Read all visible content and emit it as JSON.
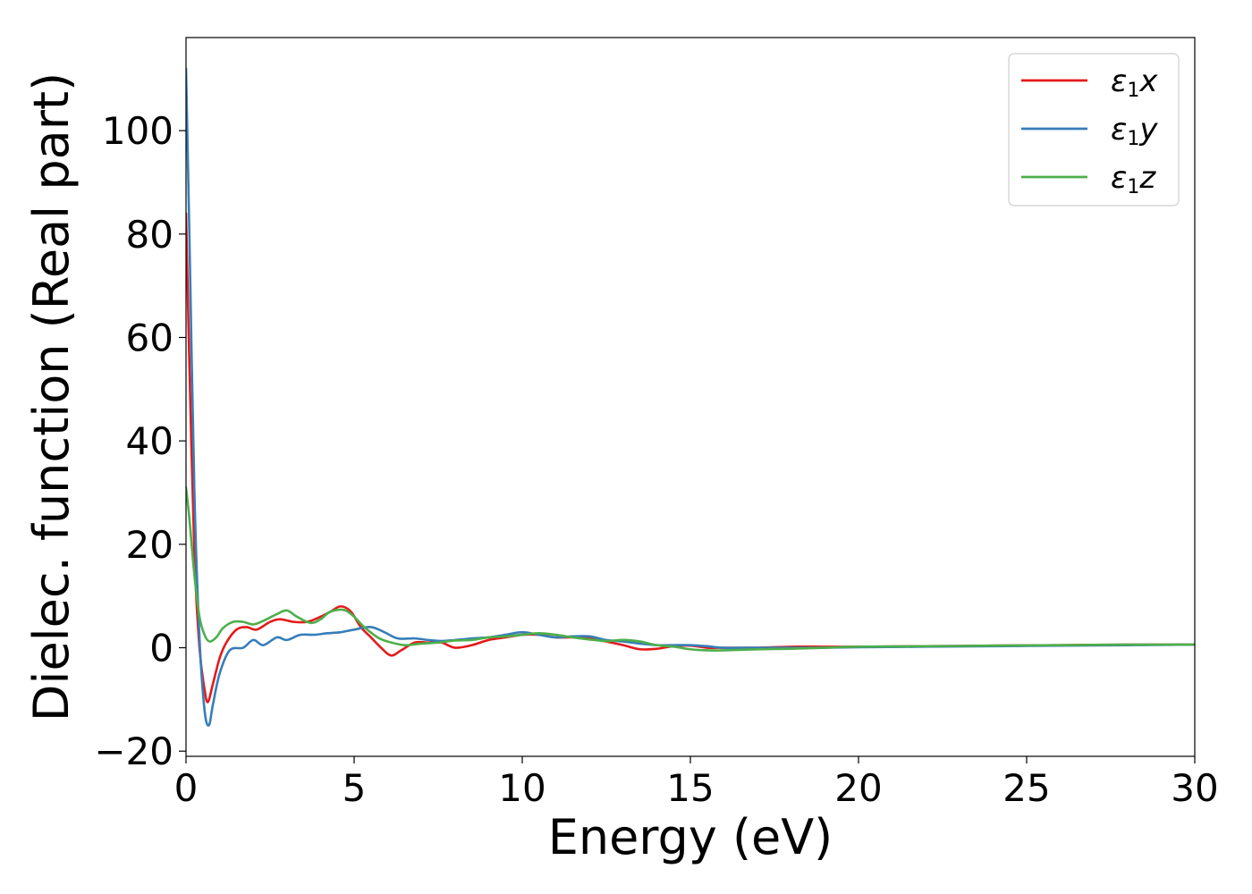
{
  "chart_data": {
    "type": "line",
    "title": "",
    "xlabel": "Energy (eV)",
    "ylabel": "Dielec. function (Real part)",
    "xlim": [
      0,
      30
    ],
    "ylim": [
      -21,
      118
    ],
    "xticks": [
      0,
      5,
      10,
      15,
      20,
      25,
      30
    ],
    "yticks": [
      -20,
      0,
      20,
      40,
      60,
      80,
      100
    ],
    "xtick_labels": [
      "0",
      "5",
      "10",
      "15",
      "20",
      "25",
      "30"
    ],
    "ytick_labels": [
      "−20",
      "0",
      "20",
      "40",
      "60",
      "80",
      "100"
    ],
    "grid": false,
    "legend_position": "top-right",
    "series": [
      {
        "name": "ε1x",
        "legend_main": "ε",
        "legend_sub": "1",
        "legend_tail": "x",
        "color": "#e41a1c",
        "x": [
          0,
          0.1,
          0.25,
          0.4,
          0.55,
          0.65,
          0.8,
          1.0,
          1.2,
          1.5,
          1.8,
          2.1,
          2.5,
          2.8,
          3.2,
          3.6,
          4.0,
          4.3,
          4.6,
          4.9,
          5.2,
          5.5,
          5.8,
          6.1,
          6.4,
          6.8,
          7.2,
          7.6,
          8.0,
          8.5,
          9.0,
          9.5,
          10.0,
          10.5,
          11.0,
          11.5,
          12.0,
          12.5,
          13.0,
          13.5,
          14.0,
          14.5,
          15.0,
          15.5,
          16.0,
          17.0,
          18.0,
          19.0,
          20.0,
          22.0,
          24.0,
          26.0,
          28.0,
          30.0
        ],
        "y": [
          84,
          55,
          18,
          0,
          -8,
          -10.5,
          -7,
          -2,
          1,
          3.5,
          4,
          3.5,
          5,
          5.5,
          5,
          5,
          6,
          7,
          8,
          7,
          4,
          2,
          0,
          -1.5,
          -0.5,
          1,
          1,
          1,
          0,
          0.5,
          1.5,
          2,
          2.5,
          2.5,
          2,
          2,
          1.8,
          1.2,
          0.5,
          -0.3,
          -0.2,
          0.3,
          0.4,
          0,
          0,
          0,
          0.2,
          0.2,
          0.2,
          0.3,
          0.4,
          0.5,
          0.6,
          0.6
        ]
      },
      {
        "name": "ε1y",
        "legend_main": "ε",
        "legend_sub": "1",
        "legend_tail": "y",
        "color": "#377eb8",
        "x": [
          0,
          0.1,
          0.25,
          0.4,
          0.55,
          0.68,
          0.8,
          1.0,
          1.3,
          1.7,
          2.0,
          2.3,
          2.7,
          3.0,
          3.4,
          3.8,
          4.2,
          4.6,
          5.0,
          5.5,
          5.9,
          6.3,
          6.8,
          7.2,
          7.6,
          8.0,
          8.5,
          9.0,
          9.5,
          10.0,
          10.5,
          11.0,
          11.5,
          12.0,
          12.5,
          13.0,
          13.5,
          14.0,
          14.5,
          15.0,
          15.5,
          16.0,
          17.0,
          18.0,
          19.0,
          20.0,
          22.0,
          24.0,
          26.0,
          28.0,
          30.0
        ],
        "y": [
          112,
          80,
          30,
          2,
          -12,
          -15,
          -11,
          -5,
          -0.5,
          0,
          1.5,
          0.5,
          2,
          1.5,
          2.5,
          2.5,
          2.8,
          3,
          3.5,
          4,
          3,
          1.8,
          1.8,
          1.5,
          1.3,
          1.5,
          1.8,
          2,
          2.5,
          3,
          2.5,
          2,
          2.2,
          2.2,
          1.5,
          1.2,
          0.8,
          0.5,
          0.5,
          0.5,
          0.3,
          0,
          0,
          0,
          0,
          0.1,
          0.2,
          0.3,
          0.4,
          0.5,
          0.6
        ]
      },
      {
        "name": "ε1z",
        "legend_main": "ε",
        "legend_sub": "1",
        "legend_tail": "z",
        "color": "#4daf4a",
        "x": [
          0,
          0.1,
          0.25,
          0.4,
          0.55,
          0.7,
          0.9,
          1.1,
          1.4,
          1.7,
          2.0,
          2.3,
          2.7,
          3.0,
          3.3,
          3.7,
          4.0,
          4.3,
          4.7,
          5.0,
          5.3,
          5.7,
          6.0,
          6.5,
          7.0,
          7.5,
          8.0,
          8.5,
          9.0,
          9.5,
          10.0,
          10.5,
          11.0,
          11.5,
          12.0,
          12.5,
          13.0,
          13.5,
          14.0,
          14.5,
          15.0,
          15.5,
          16.0,
          17.0,
          18.0,
          19.0,
          20.0,
          22.0,
          24.0,
          26.0,
          28.0,
          30.0
        ],
        "y": [
          31,
          25,
          14,
          6,
          2.5,
          1.2,
          2,
          3.8,
          5,
          5,
          4.5,
          5.2,
          6.5,
          7.2,
          6,
          4.8,
          5.5,
          7,
          7.3,
          6,
          4,
          2,
          1.2,
          0.5,
          0.8,
          1,
          1.4,
          1.5,
          2,
          2.2,
          2.5,
          2.8,
          2.5,
          2,
          1.6,
          1.3,
          1.5,
          1.2,
          0.5,
          0.2,
          -0.3,
          -0.5,
          -0.5,
          -0.3,
          -0.2,
          0,
          0.2,
          0.3,
          0.4,
          0.5,
          0.6,
          0.6
        ]
      }
    ]
  }
}
